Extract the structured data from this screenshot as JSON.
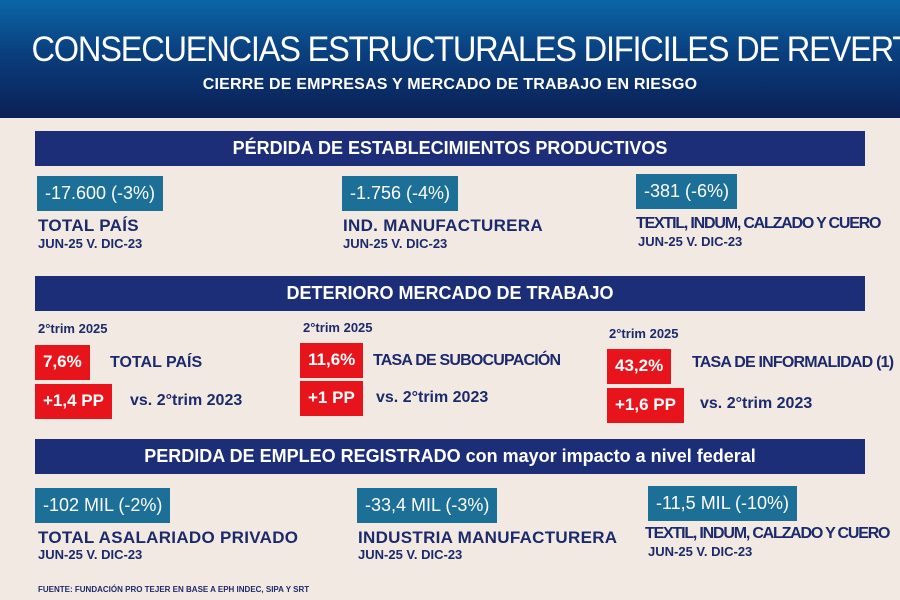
{
  "header": {
    "title": "CONSECUENCIAS ESTRUCTURALES DIFICILES DE REVERTIR",
    "subtitle": "CIERRE DE EMPRESAS Y MERCADO DE TRABAJO EN RIESGO"
  },
  "sections": [
    {
      "title": "PÉRDIDA DE ESTABLECIMIENTOS PRODUCTIVOS",
      "items": [
        {
          "value": "-17.600 (-3%)",
          "label": "TOTAL PAÍS",
          "period": "JUN-25 V. DIC-23"
        },
        {
          "value": "-1.756 (-4%)",
          "label": "IND. MANUFACTURERA",
          "period": "JUN-25 V. DIC-23"
        },
        {
          "value": "-381 (-6%)",
          "label": "TEXTIL, INDUM, CALZADO Y CUERO",
          "period": "JUN-25 V. DIC-23"
        }
      ]
    },
    {
      "title": "DETERIORO MERCADO DE TRABAJO",
      "items": [
        {
          "period": "2°trim 2025",
          "value": "7,6%",
          "label": "TOTAL PAÍS",
          "change": "+1,4 PP",
          "compare": "vs. 2°trim 2023"
        },
        {
          "period": "2°trim 2025",
          "value": "11,6%",
          "label": "TASA DE SUBOCUPACIÓN",
          "change": "+1 PP",
          "compare": "vs. 2°trim 2023"
        },
        {
          "period": "2°trim 2025",
          "value": "43,2%",
          "label": "TASA DE INFORMALIDAD (1)",
          "change": "+1,6 PP",
          "compare": "vs. 2°trim 2023"
        }
      ]
    },
    {
      "title": "PERDIDA DE EMPLEO REGISTRADO con mayor impacto a nivel federal",
      "items": [
        {
          "value": "-102 MIL (-2%)",
          "label": "TOTAL ASALARIADO PRIVADO",
          "period": "JUN-25 V. DIC-23"
        },
        {
          "value": "-33,4 MIL (-3%)",
          "label": "INDUSTRIA MANUFACTURERA",
          "period": "JUN-25 V. DIC-23"
        },
        {
          "value": "-11,5 MIL (-10%)",
          "label": "TEXTIL, INDUM, CALZADO Y CUERO",
          "period": "JUN-25 V. DIC-23"
        }
      ]
    }
  ],
  "footer": "FUENTE: FUNDACIÓN PRO TEJER EN BASE A EPH INDEC, SIPA Y SRT",
  "colors": {
    "navy": "#1d2e78",
    "teal": "#1c6f97",
    "red": "#e8141c",
    "background": "#f2eae2"
  }
}
